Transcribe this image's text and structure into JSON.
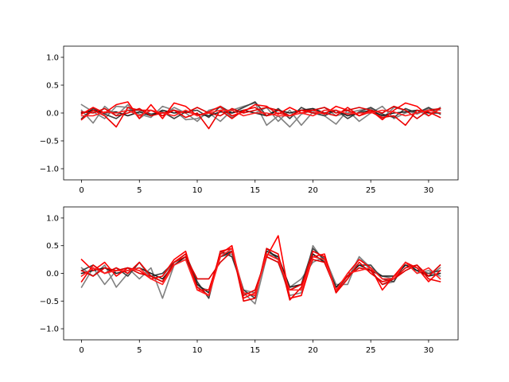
{
  "chart_data": [
    {
      "type": "line",
      "title": "",
      "xlabel": "",
      "ylabel": "",
      "xlim": [
        -1.55,
        32.55
      ],
      "ylim": [
        -1.2,
        1.2
      ],
      "x_ticks": [
        0,
        5,
        10,
        15,
        20,
        25,
        30
      ],
      "y_ticks": [
        -1.0,
        -0.5,
        0.0,
        0.5,
        1.0
      ],
      "x_tick_labels": [
        "0",
        "5",
        "10",
        "15",
        "20",
        "25",
        "30"
      ],
      "y_tick_labels": [
        "−1.0",
        "−0.5",
        "0.0",
        "0.5",
        "1.0"
      ],
      "grid": false,
      "x": [
        0,
        1,
        2,
        3,
        4,
        5,
        6,
        7,
        8,
        9,
        10,
        11,
        12,
        13,
        14,
        15,
        16,
        17,
        18,
        19,
        20,
        21,
        22,
        23,
        24,
        25,
        26,
        27,
        28,
        29,
        30,
        31
      ],
      "series": [
        {
          "color": "#808080",
          "values": [
            0.15,
            0.02,
            -0.1,
            0.12,
            0.1,
            -0.02,
            -0.08,
            0.12,
            0.05,
            -0.12,
            -0.1,
            0.0,
            -0.15,
            0.05,
            0.12,
            0.18,
            -0.22,
            -0.05,
            -0.25,
            -0.02,
            0.05,
            0.1,
            -0.05,
            0.0,
            0.05,
            0.08,
            -0.1,
            0.1,
            0.05,
            -0.02,
            0.08,
            0.05
          ]
        },
        {
          "color": "#808080",
          "values": [
            0.05,
            -0.18,
            0.12,
            -0.05,
            0.15,
            -0.1,
            0.05,
            -0.05,
            0.1,
            0.0,
            -0.15,
            0.05,
            0.1,
            -0.08,
            0.05,
            0.0,
            0.1,
            -0.15,
            0.05,
            -0.22,
            0.02,
            -0.05,
            -0.2,
            0.05,
            -0.15,
            0.0,
            0.12,
            -0.1,
            0.0,
            0.05,
            -0.05,
            0.1
          ]
        },
        {
          "color": "#404040",
          "values": [
            -0.1,
            0.08,
            -0.02,
            -0.1,
            0.05,
            0.05,
            -0.02,
            0.02,
            -0.1,
            0.02,
            0.05,
            -0.08,
            0.12,
            0.0,
            0.1,
            0.2,
            -0.05,
            0.08,
            -0.1,
            0.1,
            0.0,
            -0.05,
            0.05,
            -0.1,
            0.02,
            0.1,
            -0.02,
            -0.08,
            0.08,
            0.0,
            0.1,
            -0.02
          ]
        },
        {
          "color": "#202020",
          "values": [
            0.0,
            0.05,
            0.0,
            0.02,
            -0.05,
            0.02,
            -0.05,
            0.05,
            0.0,
            0.02,
            -0.02,
            -0.05,
            0.02,
            0.0,
            0.05,
            0.0,
            -0.05,
            0.05,
            0.0,
            0.05,
            0.08,
            0.0,
            0.05,
            -0.05,
            0.0,
            0.05,
            -0.05,
            0.0,
            0.02,
            0.05,
            0.0,
            0.0
          ]
        },
        {
          "color": "#ff0000",
          "values": [
            -0.02,
            0.1,
            0.0,
            0.15,
            0.2,
            -0.1,
            0.15,
            -0.1,
            0.18,
            0.12,
            -0.05,
            0.02,
            0.12,
            -0.05,
            0.02,
            0.15,
            0.12,
            -0.02,
            0.1,
            0.0,
            0.05,
            -0.02,
            0.12,
            0.05,
            -0.05,
            0.05,
            -0.12,
            0.05,
            0.18,
            0.12,
            -0.05,
            0.08
          ]
        },
        {
          "color": "#ee0000",
          "values": [
            -0.12,
            0.05,
            -0.05,
            -0.25,
            0.1,
            0.05,
            0.05,
            -0.05,
            0.05,
            -0.08,
            0.0,
            -0.28,
            0.05,
            -0.1,
            0.05,
            0.1,
            -0.05,
            0.0,
            -0.05,
            0.05,
            0.0,
            0.0,
            -0.05,
            0.1,
            -0.05,
            0.02,
            -0.08,
            -0.05,
            -0.22,
            0.05,
            0.02,
            -0.08
          ]
        },
        {
          "color": "#dd0000",
          "values": [
            0.02,
            0.0,
            0.08,
            -0.05,
            0.0,
            0.08,
            -0.05,
            0.0,
            0.05,
            0.0,
            0.1,
            0.0,
            -0.05,
            0.08,
            0.0,
            0.05,
            0.1,
            0.05,
            -0.05,
            0.05,
            0.05,
            0.1,
            0.0,
            0.05,
            0.1,
            0.05,
            0.0,
            0.12,
            0.05,
            -0.1,
            0.05,
            0.08
          ]
        },
        {
          "color": "#ff2020",
          "values": [
            -0.05,
            -0.05,
            0.02,
            0.0,
            0.05,
            -0.05,
            0.05,
            0.0,
            -0.05,
            0.05,
            -0.05,
            0.0,
            0.05,
            0.05,
            -0.05,
            0.0,
            0.0,
            -0.05,
            -0.05,
            0.0,
            -0.05,
            0.05,
            0.05,
            -0.02,
            0.0,
            0.0,
            0.05,
            0.02,
            -0.05,
            0.0,
            0.05,
            0.0
          ]
        }
      ]
    },
    {
      "type": "line",
      "title": "",
      "xlabel": "",
      "ylabel": "",
      "xlim": [
        -1.55,
        32.55
      ],
      "ylim": [
        -1.2,
        1.2
      ],
      "x_ticks": [
        0,
        5,
        10,
        15,
        20,
        25,
        30
      ],
      "y_ticks": [
        -1.0,
        -0.5,
        0.0,
        0.5,
        1.0
      ],
      "x_tick_labels": [
        "0",
        "5",
        "10",
        "15",
        "20",
        "25",
        "30"
      ],
      "y_tick_labels": [
        "−1.0",
        "−0.5",
        "0.0",
        "0.5",
        "1.0"
      ],
      "grid": false,
      "x": [
        0,
        1,
        2,
        3,
        4,
        5,
        6,
        7,
        8,
        9,
        10,
        11,
        12,
        13,
        14,
        15,
        16,
        17,
        18,
        19,
        20,
        21,
        22,
        23,
        24,
        25,
        26,
        27,
        28,
        29,
        30,
        31
      ],
      "series": [
        {
          "color": "#808080",
          "values": [
            -0.25,
            0.1,
            -0.2,
            0.05,
            0.1,
            -0.1,
            0.1,
            -0.45,
            0.15,
            0.25,
            -0.25,
            -0.3,
            0.3,
            0.35,
            -0.35,
            -0.55,
            0.3,
            0.2,
            -0.4,
            -0.35,
            0.5,
            0.2,
            -0.3,
            -0.1,
            0.3,
            0.05,
            -0.2,
            -0.15,
            0.2,
            0.0,
            0.05,
            -0.05
          ]
        },
        {
          "color": "#808080",
          "values": [
            0.1,
            -0.05,
            0.15,
            -0.25,
            0.0,
            0.2,
            -0.1,
            -0.05,
            0.2,
            0.3,
            -0.2,
            -0.35,
            0.35,
            0.4,
            -0.3,
            -0.35,
            0.35,
            0.3,
            -0.25,
            -0.1,
            0.2,
            0.3,
            -0.2,
            -0.2,
            0.3,
            0.1,
            -0.05,
            -0.1,
            0.15,
            0.1,
            -0.05,
            0.1
          ]
        },
        {
          "color": "#404040",
          "values": [
            0.05,
            0.15,
            0.0,
            0.1,
            -0.05,
            0.2,
            -0.05,
            0.0,
            0.2,
            0.35,
            -0.15,
            -0.45,
            0.4,
            0.3,
            -0.3,
            -0.45,
            0.45,
            0.25,
            -0.3,
            -0.2,
            0.45,
            0.25,
            -0.25,
            -0.05,
            0.15,
            0.15,
            -0.1,
            -0.15,
            0.2,
            0.05,
            0.0,
            0.05
          ]
        },
        {
          "color": "#202020",
          "values": [
            0.0,
            0.05,
            0.1,
            0.0,
            0.05,
            0.1,
            0.0,
            -0.1,
            0.15,
            0.3,
            -0.2,
            -0.35,
            0.3,
            0.4,
            -0.35,
            -0.4,
            0.4,
            0.3,
            -0.25,
            -0.2,
            0.35,
            0.2,
            -0.25,
            -0.05,
            0.15,
            0.05,
            -0.05,
            -0.05,
            0.15,
            0.05,
            -0.05,
            0.0
          ]
        },
        {
          "color": "#ff0000",
          "values": [
            0.25,
            0.05,
            0.2,
            -0.05,
            0.1,
            0.05,
            -0.1,
            -0.05,
            0.25,
            0.4,
            -0.3,
            -0.3,
            0.35,
            0.5,
            -0.45,
            -0.35,
            0.3,
            0.68,
            -0.45,
            -0.4,
            0.3,
            0.35,
            -0.35,
            0.0,
            0.25,
            0.1,
            -0.3,
            -0.05,
            0.2,
            0.1,
            -0.15,
            0.05
          ]
        },
        {
          "color": "#ee0000",
          "values": [
            -0.15,
            0.15,
            0.0,
            0.1,
            0.0,
            0.2,
            -0.05,
            -0.15,
            0.2,
            0.35,
            -0.25,
            -0.4,
            0.4,
            0.45,
            -0.5,
            -0.45,
            0.45,
            0.35,
            -0.48,
            -0.25,
            0.4,
            0.3,
            -0.35,
            -0.1,
            0.2,
            0.0,
            -0.15,
            -0.1,
            0.1,
            0.15,
            -0.1,
            -0.15
          ]
        },
        {
          "color": "#dd0000",
          "values": [
            0.05,
            -0.05,
            0.1,
            0.05,
            0.1,
            0.0,
            -0.05,
            -0.15,
            0.2,
            0.3,
            -0.1,
            -0.1,
            0.2,
            0.4,
            -0.4,
            -0.3,
            0.3,
            0.2,
            -0.3,
            -0.2,
            0.25,
            0.2,
            -0.3,
            -0.05,
            0.1,
            0.05,
            -0.2,
            -0.1,
            0.05,
            0.15,
            -0.05,
            0.15
          ]
        },
        {
          "color": "#ff2020",
          "values": [
            -0.05,
            0.1,
            0.0,
            0.05,
            0.05,
            0.1,
            -0.1,
            -0.2,
            0.15,
            0.25,
            -0.3,
            -0.4,
            0.3,
            0.45,
            -0.35,
            -0.4,
            0.35,
            0.25,
            -0.3,
            -0.3,
            0.3,
            0.25,
            -0.3,
            0.0,
            0.05,
            0.1,
            -0.1,
            -0.1,
            0.2,
            0.0,
            0.1,
            -0.1
          ]
        }
      ]
    }
  ]
}
